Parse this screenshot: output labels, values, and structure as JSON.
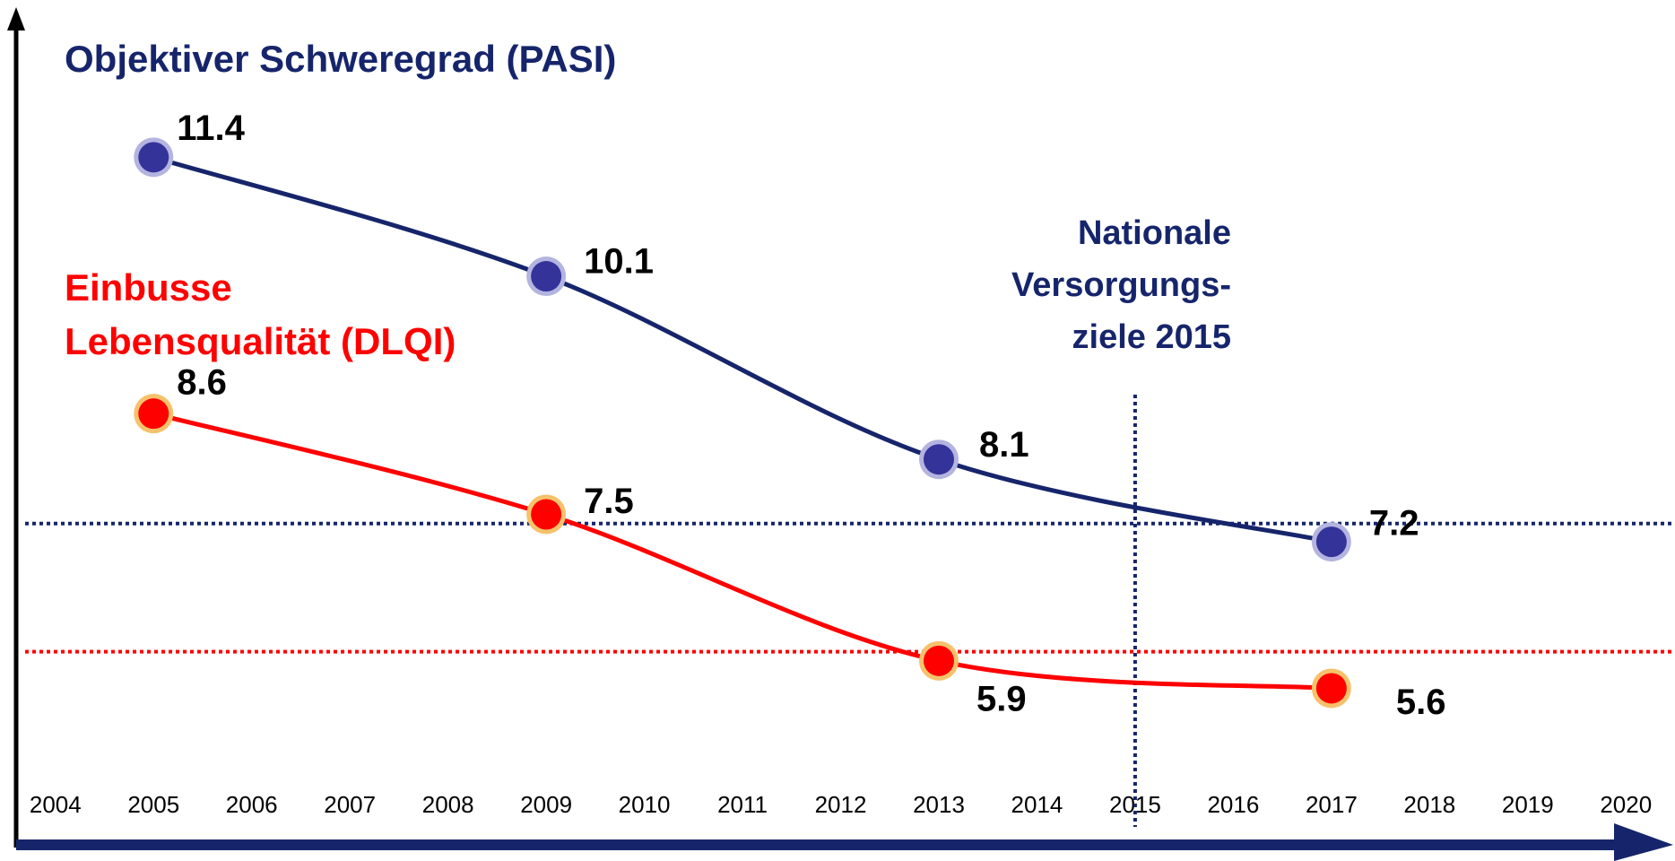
{
  "chart_data": {
    "type": "line",
    "x": [
      2005,
      2009,
      2013,
      2017
    ],
    "series": [
      {
        "name": [
          "Objektiver Schweregrad (PASI)"
        ],
        "color": "#16256b",
        "marker_color": "#333399",
        "halo_color": "#b4b4e0",
        "values": [
          11.4,
          10.1,
          8.1,
          7.2
        ]
      },
      {
        "name": [
          "Einbusse",
          "Lebensqualität (DLQI)"
        ],
        "color": "#ff0000",
        "marker_color": "#ff0000",
        "halo_color": "#f5c26b",
        "values": [
          8.6,
          7.5,
          5.9,
          5.6
        ]
      }
    ],
    "xlim": [
      2003.6,
      2020.5
    ],
    "xticks": [
      2004,
      2005,
      2006,
      2007,
      2008,
      2009,
      2010,
      2011,
      2012,
      2013,
      2014,
      2015,
      2016,
      2017,
      2018,
      2019,
      2020
    ],
    "ylim": [
      3.9,
      13.0
    ],
    "hlines": [
      {
        "value": 7.4,
        "color": "#16256b"
      },
      {
        "value": 6.0,
        "color": "#ff0000"
      }
    ],
    "vlines": [
      {
        "value": 2015,
        "color": "#16256b"
      }
    ],
    "annotation": {
      "lines": [
        "Nationale",
        "Versorgungs-",
        "ziele 2015"
      ],
      "color": "#16256b"
    }
  }
}
